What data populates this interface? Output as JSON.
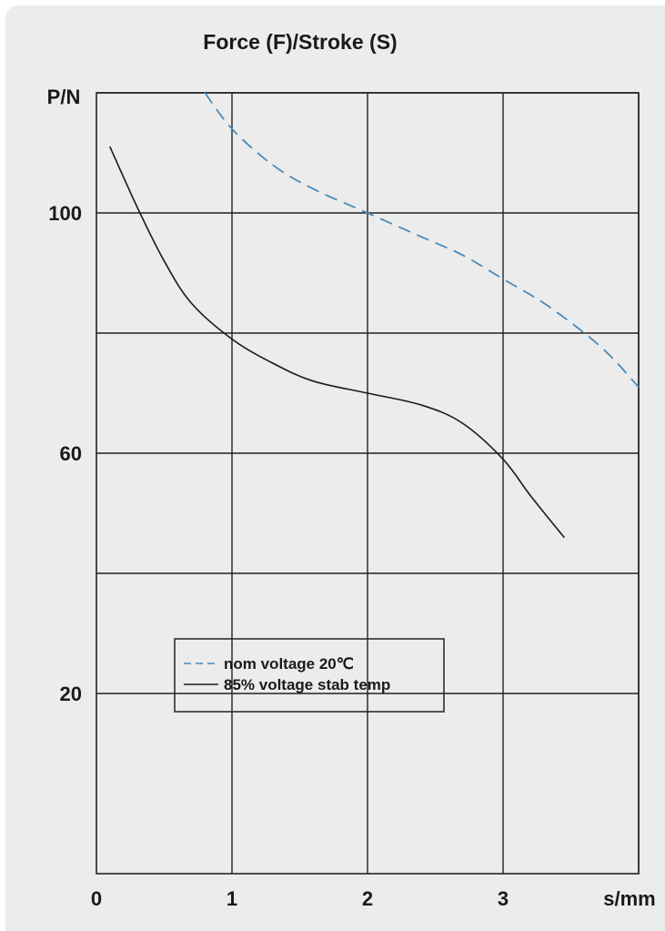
{
  "chart_data": {
    "type": "line",
    "title": "Force (F)/Stroke (S)",
    "xlabel": "s/mm",
    "ylabel": "P/N",
    "xlim": [
      0,
      4
    ],
    "ylim": [
      -10,
      120
    ],
    "x_ticks": [
      0,
      1,
      2,
      3
    ],
    "x_tick_labels": [
      "0",
      "1",
      "2",
      "3"
    ],
    "x_grid": [
      1,
      2,
      3,
      4
    ],
    "y_ticks": [
      20,
      60,
      100
    ],
    "y_tick_labels": [
      "20",
      "60",
      "100"
    ],
    "y_grid": [
      20,
      40,
      60,
      80,
      100,
      120
    ],
    "grid": true,
    "legend_position": "lower-left",
    "series": [
      {
        "name": "nom voltage 20℃",
        "style": "dashed",
        "color": "#4a8ab8",
        "x": [
          0.8,
          1.0,
          1.3,
          1.6,
          2.0,
          2.4,
          2.7,
          3.0,
          3.3,
          3.6,
          3.8,
          4.0
        ],
        "y": [
          120,
          114,
          108,
          104,
          100,
          96,
          93,
          89,
          85,
          80,
          76,
          71
        ]
      },
      {
        "name": "85% voltage stab temp",
        "style": "solid",
        "color": "#1a1a1a",
        "x": [
          0.1,
          0.3,
          0.5,
          0.7,
          1.0,
          1.3,
          1.6,
          2.0,
          2.4,
          2.7,
          3.0,
          3.2,
          3.45
        ],
        "y": [
          111,
          101,
          92,
          85,
          79,
          75,
          72,
          70,
          68,
          65,
          59,
          53,
          46
        ]
      }
    ]
  }
}
